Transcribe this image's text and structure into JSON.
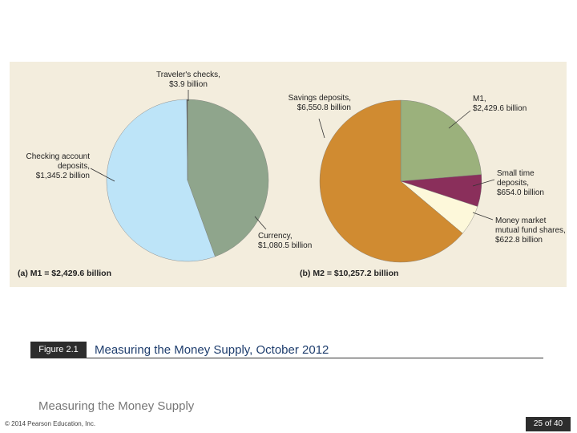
{
  "chart_data": [
    {
      "type": "pie",
      "title": "(a) M1 = $2,429.6 billion",
      "categories": [
        "Currency,",
        "Checking account deposits,",
        "Traveler's checks,"
      ],
      "values": [
        1080.5,
        1345.2,
        3.9
      ],
      "value_labels": [
        "$1,080.5 billion",
        "$1,345.2 billion",
        "$3.9 billion"
      ],
      "colors": [
        "#8fa58c",
        "#bde4f8",
        "#4a4a4a"
      ]
    },
    {
      "type": "pie",
      "title": "(b) M2 = $10,257.2 billion",
      "categories": [
        "M1,",
        "Small time deposits,",
        "Money market mutual fund shares,",
        "Savings deposits,"
      ],
      "values": [
        2429.6,
        654.0,
        622.8,
        6550.8
      ],
      "value_labels": [
        "$2,429.6 billion",
        "$654.0 billion",
        "$622.8 billion",
        "$6,550.8 billion"
      ],
      "colors": [
        "#9bb17c",
        "#8a2f5b",
        "#fdf8da",
        "#d08b31"
      ]
    }
  ],
  "figure": {
    "label": "Figure 2.1",
    "caption": "Measuring the Money Supply, October 2012"
  },
  "slide_title": "Measuring the Money Supply",
  "footer": {
    "copyright": "© 2014 Pearson Education, Inc.",
    "page": "25 of 40"
  }
}
